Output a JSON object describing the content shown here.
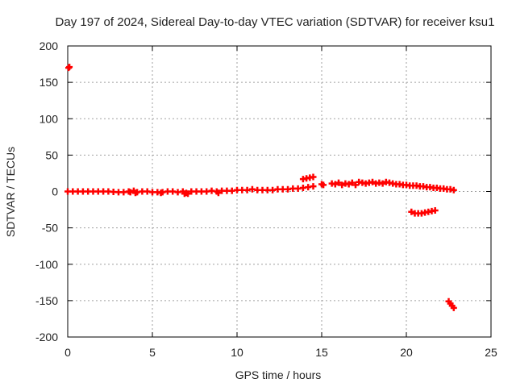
{
  "chart_data": {
    "type": "scatter",
    "title": "Day 197 of 2024, Sidereal Day-to-day VTEC variation (SDTVAR) for receiver ksu1",
    "xlabel": "GPS time / hours",
    "ylabel": "SDTVAR / TECUs",
    "xlim": [
      0,
      25
    ],
    "ylim": [
      -200,
      200
    ],
    "xticks": [
      0,
      5,
      10,
      15,
      20,
      25
    ],
    "yticks": [
      200,
      150,
      100,
      50,
      0,
      -50,
      -100,
      -150,
      -200
    ],
    "grid": true,
    "series_color": "#ff0000",
    "series": [
      {
        "name": "SDTVAR",
        "points": [
          [
            0.05,
            170
          ],
          [
            0.1,
            171
          ],
          [
            0.0,
            0
          ],
          [
            0.3,
            0
          ],
          [
            0.6,
            0
          ],
          [
            0.9,
            0
          ],
          [
            1.2,
            0
          ],
          [
            1.5,
            0
          ],
          [
            1.8,
            0
          ],
          [
            2.1,
            0
          ],
          [
            2.4,
            0
          ],
          [
            2.7,
            -0.5
          ],
          [
            3.0,
            -1
          ],
          [
            3.3,
            -1
          ],
          [
            3.6,
            0
          ],
          [
            3.9,
            1
          ],
          [
            4.1,
            -1
          ],
          [
            4.4,
            0
          ],
          [
            4.7,
            0
          ],
          [
            5.0,
            -1
          ],
          [
            5.3,
            -1
          ],
          [
            5.6,
            -1
          ],
          [
            5.9,
            0
          ],
          [
            6.2,
            0
          ],
          [
            6.5,
            -1
          ],
          [
            6.8,
            0
          ],
          [
            7.0,
            -2
          ],
          [
            7.3,
            0
          ],
          [
            7.6,
            0
          ],
          [
            7.9,
            0
          ],
          [
            8.2,
            0
          ],
          [
            8.5,
            1
          ],
          [
            8.8,
            0
          ],
          [
            9.1,
            1
          ],
          [
            9.4,
            1
          ],
          [
            9.7,
            1
          ],
          [
            10.0,
            2
          ],
          [
            10.3,
            2
          ],
          [
            10.6,
            2
          ],
          [
            10.9,
            3
          ],
          [
            11.2,
            2
          ],
          [
            11.5,
            2
          ],
          [
            11.8,
            2
          ],
          [
            12.1,
            2
          ],
          [
            12.4,
            3
          ],
          [
            12.7,
            3
          ],
          [
            13.0,
            3
          ],
          [
            13.3,
            4
          ],
          [
            13.6,
            4
          ],
          [
            13.9,
            5
          ],
          [
            14.2,
            6
          ],
          [
            14.5,
            7
          ],
          [
            3.7,
            -1
          ],
          [
            4.0,
            -2
          ],
          [
            5.5,
            -2
          ],
          [
            6.9,
            -3
          ],
          [
            7.1,
            -3
          ],
          [
            8.9,
            -2
          ],
          [
            13.9,
            17
          ],
          [
            14.1,
            18
          ],
          [
            14.3,
            19
          ],
          [
            14.5,
            20
          ],
          [
            15.0,
            10
          ],
          [
            15.1,
            9
          ],
          [
            15.6,
            11
          ],
          [
            15.8,
            10
          ],
          [
            16.0,
            12
          ],
          [
            16.2,
            9
          ],
          [
            16.4,
            11
          ],
          [
            16.6,
            10
          ],
          [
            16.8,
            12
          ],
          [
            17.0,
            9
          ],
          [
            17.2,
            13
          ],
          [
            17.4,
            12
          ],
          [
            17.6,
            11
          ],
          [
            17.8,
            12
          ],
          [
            18.0,
            13
          ],
          [
            18.2,
            11
          ],
          [
            18.4,
            12
          ],
          [
            18.6,
            11
          ],
          [
            18.8,
            13
          ],
          [
            19.0,
            12
          ],
          [
            19.2,
            11
          ],
          [
            19.4,
            10
          ],
          [
            19.6,
            10
          ],
          [
            19.8,
            9
          ],
          [
            20.0,
            9
          ],
          [
            20.2,
            8
          ],
          [
            20.4,
            8
          ],
          [
            20.6,
            8
          ],
          [
            20.8,
            7
          ],
          [
            21.0,
            7
          ],
          [
            21.2,
            6
          ],
          [
            21.4,
            6
          ],
          [
            21.6,
            5
          ],
          [
            21.8,
            5
          ],
          [
            22.0,
            4
          ],
          [
            22.2,
            4
          ],
          [
            22.4,
            3
          ],
          [
            22.6,
            3
          ],
          [
            22.8,
            2
          ],
          [
            20.3,
            -28
          ],
          [
            20.5,
            -30
          ],
          [
            20.7,
            -30
          ],
          [
            20.9,
            -30
          ],
          [
            21.1,
            -29
          ],
          [
            21.3,
            -28
          ],
          [
            21.5,
            -27
          ],
          [
            21.7,
            -26
          ],
          [
            22.5,
            -151
          ],
          [
            22.6,
            -154
          ],
          [
            22.7,
            -157
          ],
          [
            22.8,
            -160
          ]
        ]
      }
    ]
  }
}
